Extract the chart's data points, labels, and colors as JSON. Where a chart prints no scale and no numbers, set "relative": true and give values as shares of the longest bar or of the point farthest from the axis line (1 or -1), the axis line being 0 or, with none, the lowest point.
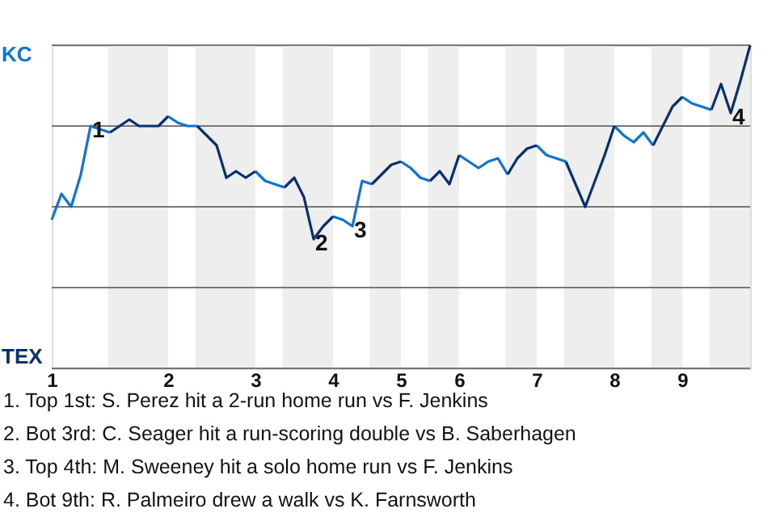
{
  "chart_data": {
    "type": "line",
    "relative": true,
    "categories": [
      "1",
      null,
      null,
      null,
      null,
      null,
      null,
      null,
      null,
      null,
      null,
      null,
      "2",
      null,
      null,
      null,
      null,
      null,
      null,
      null,
      null,
      "3",
      null,
      null,
      null,
      null,
      null,
      null,
      null,
      "4",
      null,
      null,
      null,
      null,
      null,
      null,
      "5",
      null,
      null,
      null,
      null,
      null,
      "6",
      null,
      null,
      null,
      null,
      null,
      null,
      null,
      "7",
      null,
      null,
      null,
      null,
      null,
      null,
      null,
      "8",
      null,
      null,
      null,
      null,
      null,
      null,
      "9",
      null,
      null,
      null,
      null,
      null,
      null,
      null
    ],
    "grid": "y",
    "series": [
      {
        "color": "#0a74da",
        "values": [
          0.46,
          0.54,
          0.5,
          0.6,
          0.75,
          0.74,
          0.73,
          null,
          null,
          null,
          null,
          null,
          0.78,
          0.76,
          0.75,
          0.75,
          null,
          null,
          null,
          null,
          null,
          0.61,
          0.58,
          0.57,
          0.56,
          null,
          null,
          null,
          null,
          0.47,
          0.46,
          0.44,
          0.58,
          0.57,
          null,
          null,
          0.64,
          0.62,
          0.59,
          0.58,
          null,
          null,
          0.66,
          0.64,
          0.62,
          0.64,
          0.65,
          0.6,
          null,
          null,
          0.69,
          0.66,
          0.65,
          0.64,
          null,
          null,
          null,
          null,
          0.75,
          0.72,
          0.7,
          0.73,
          0.69,
          null,
          null,
          0.84,
          0.82,
          0.81,
          0.8,
          null,
          null,
          null,
          null
        ]
      },
      {
        "color": "#06306e",
        "values": [
          null,
          null,
          null,
          null,
          null,
          null,
          0.73,
          0.75,
          0.77,
          0.75,
          0.75,
          0.75,
          0.78,
          null,
          null,
          0.75,
          0.72,
          0.69,
          0.59,
          0.61,
          0.59,
          0.61,
          null,
          null,
          0.56,
          0.59,
          0.53,
          0.4,
          0.44,
          0.47,
          null,
          null,
          null,
          0.57,
          0.6,
          0.63,
          0.64,
          null,
          null,
          0.58,
          0.61,
          0.57,
          0.66,
          null,
          null,
          null,
          null,
          0.6,
          0.65,
          0.68,
          0.69,
          null,
          null,
          0.64,
          0.57,
          0.5,
          0.58,
          0.66,
          0.75,
          null,
          null,
          null,
          0.69,
          0.75,
          0.81,
          0.84,
          null,
          null,
          0.8,
          0.88,
          0.79,
          0.89,
          1
        ]
      }
    ],
    "annotations": [
      "KC",
      "TEX",
      {
        "text": "1",
        "y": 0.75
      },
      {
        "text": "2",
        "y": 0.4
      },
      {
        "text": "3",
        "y": 0.44
      },
      {
        "text": "4",
        "y": 0.79
      },
      "1. Top 1st: S. Perez hit a 2-run home run vs F. Jenkins",
      "2. Bot 3rd: C. Seager hit a run-scoring double vs B. Saberhagen",
      "3. Top 4th: M. Sweeney hit a solo home run vs F. Jenkins",
      "4. Bot 9th: R. Palmeiro drew a walk vs K. Farnsworth"
    ]
  }
}
